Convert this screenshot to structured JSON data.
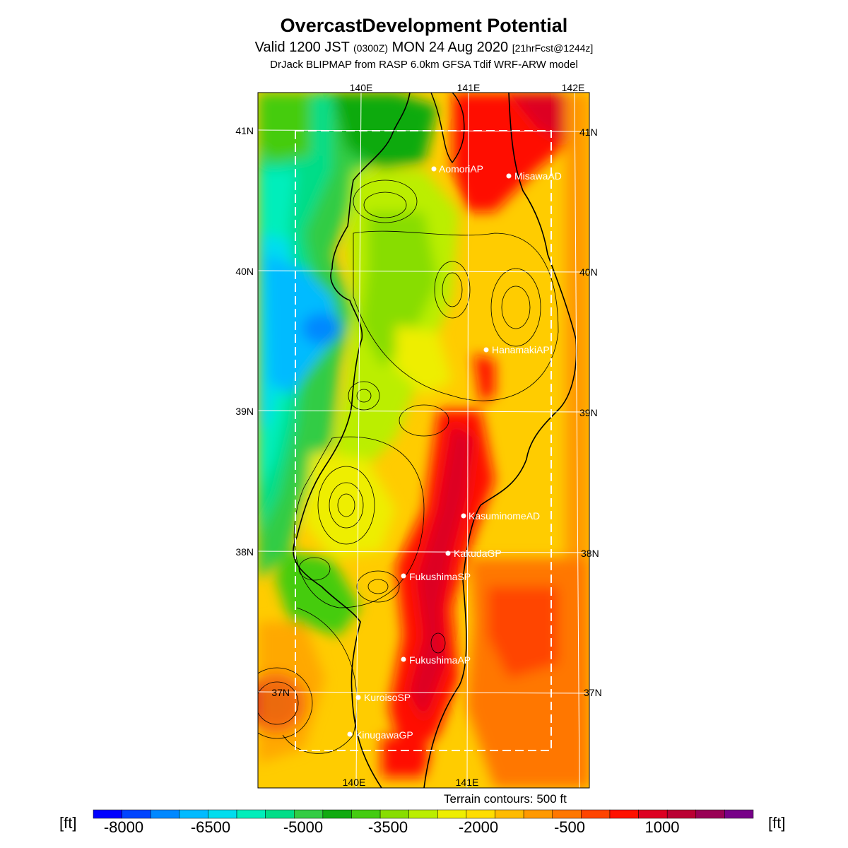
{
  "header": {
    "title": "OvercastDevelopment Potential",
    "valid_prefix": "Valid 1200 JST ",
    "valid_utc": "(0300Z)",
    "valid_date": " MON 24 Aug 2020 ",
    "forecast_info": "[21hrFcst@1244z]",
    "model_line": "DrJack BLIPMAP from RASP 6.0km GFSA Tdif WRF-ARW model"
  },
  "map": {
    "lon_labels_top": [
      "140E",
      "141E",
      "142E"
    ],
    "lon_labels_bottom": [
      "140E",
      "141E"
    ],
    "lat_labels_left": [
      "41N",
      "40N",
      "39N",
      "38N",
      "37N"
    ],
    "lat_labels_right": [
      "41N",
      "40N",
      "39N",
      "38N",
      "37N"
    ],
    "sites": [
      {
        "name": "AomoriAP"
      },
      {
        "name": "MisawaAD"
      },
      {
        "name": "HanamakiAP"
      },
      {
        "name": "KasuminomeAD"
      },
      {
        "name": "KakudaGP"
      },
      {
        "name": "FukushimaSP"
      },
      {
        "name": "FukushimaAP"
      },
      {
        "name": "KuroisoSP"
      },
      {
        "name": "KinugawaGP"
      }
    ]
  },
  "terrain_note": "Terrain contours: 500 ft",
  "colorbar": {
    "unit_left": "[ft]",
    "unit_right": "[ft]",
    "tick_labels": [
      "-8000",
      "-6500",
      "-5000",
      "-3500",
      "-2000",
      "-500",
      "1000"
    ],
    "colors": [
      "#0000ff",
      "#0044ff",
      "#0088ff",
      "#00bbff",
      "#00ddee",
      "#00eebb",
      "#00dd88",
      "#33cc44",
      "#11aa11",
      "#44cc11",
      "#88dd00",
      "#bbee00",
      "#eeee00",
      "#ffdd00",
      "#ffbb00",
      "#ff9900",
      "#ff7700",
      "#ff4400",
      "#ff1100",
      "#dd0022",
      "#bb0033",
      "#990055",
      "#770088"
    ]
  }
}
